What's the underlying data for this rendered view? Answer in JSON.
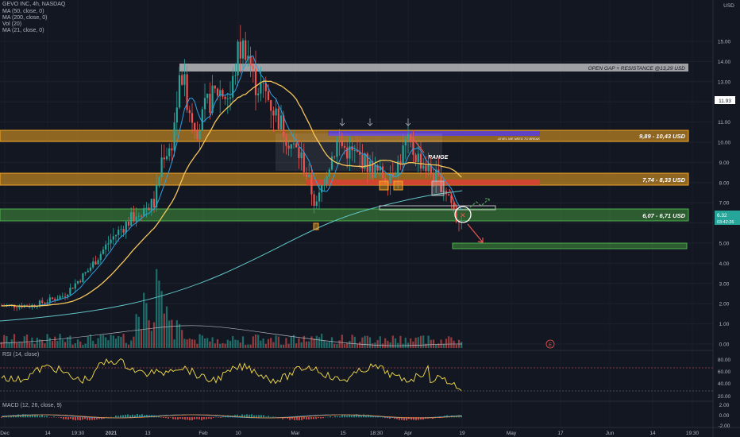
{
  "header": {
    "symbol_line": "GEVO INC, 4h, NASDAQ",
    "ma50": "MA (50, close, 0)",
    "ma200": "MA (200, close, 0)",
    "vol": "Vol (20)",
    "ma21": "MA (21, close, 0)",
    "currency": "USD"
  },
  "price_axis": [
    "15.00",
    "14.00",
    "13.00",
    "12.00",
    "11.00",
    "10.00",
    "9.00",
    "8.00",
    "7.00",
    "6.00",
    "5.00",
    "4.00",
    "3.00",
    "2.00",
    "1.00",
    "0.00"
  ],
  "price_tags": {
    "high": "11.93",
    "last": "6.32",
    "countdown": "03:42:26"
  },
  "zones": {
    "resistance": "OPEN GAP + RESISTANCE @13,29 USD",
    "level_break": "LEVEL WE NEED TO BREAK",
    "upper": "9,89 - 10,43 USD",
    "middle": "7,74 - 8,33 USD",
    "lower": "6,07 - 6,71 USD",
    "range": "RANGE"
  },
  "rsi": {
    "label": "RSI (14, close)",
    "axis": [
      "80.00",
      "60.00",
      "40.00",
      "20.00"
    ]
  },
  "macd": {
    "label": "MACD (12, 26, close, 9)",
    "axis": [
      "2.00",
      "0.00",
      "-2.00"
    ]
  },
  "time_axis": [
    "Dec",
    "14",
    "19:30",
    "2021",
    "13",
    "Feb",
    "10",
    "Mar",
    "15",
    "18:30",
    "Apr",
    "19",
    "May",
    "17",
    "Jun",
    "14",
    "19:30"
  ],
  "event_marker": "E",
  "colors": {
    "background": "#131722",
    "up": "#26a69a",
    "down": "#ef5350",
    "ma50": "#f7c65a",
    "ma21": "#2f9fe3",
    "ma200": "#62c6c8",
    "orange_zone": "#f5a623",
    "green_zone": "#3d8b3a",
    "gray_zone": "#c8c8c8"
  }
}
